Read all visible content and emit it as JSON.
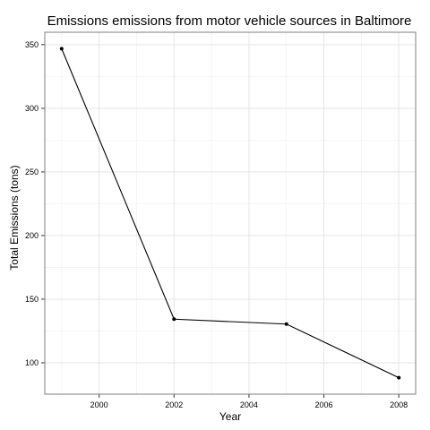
{
  "chart_data": {
    "type": "line",
    "title": "Emissions  emissions from motor vehicle sources in Baltimore",
    "xlabel": "Year",
    "ylabel": "Total Emissions (tons)",
    "x": [
      1999,
      2002,
      2005,
      2008
    ],
    "series": [
      {
        "values": [
          346.82,
          134.31,
          130.43,
          88.28
        ]
      }
    ],
    "xlim": [
      1998.55,
      2008.45
    ],
    "ylim": [
      75.35,
      359.75
    ],
    "xticks": [
      2000,
      2002,
      2004,
      2006,
      2008
    ],
    "yticks": [
      100,
      150,
      200,
      250,
      300,
      350
    ],
    "grid": true,
    "colors": {
      "line": "#000000",
      "grid": "#e5e5e5",
      "border": "#7f7f7f"
    }
  }
}
